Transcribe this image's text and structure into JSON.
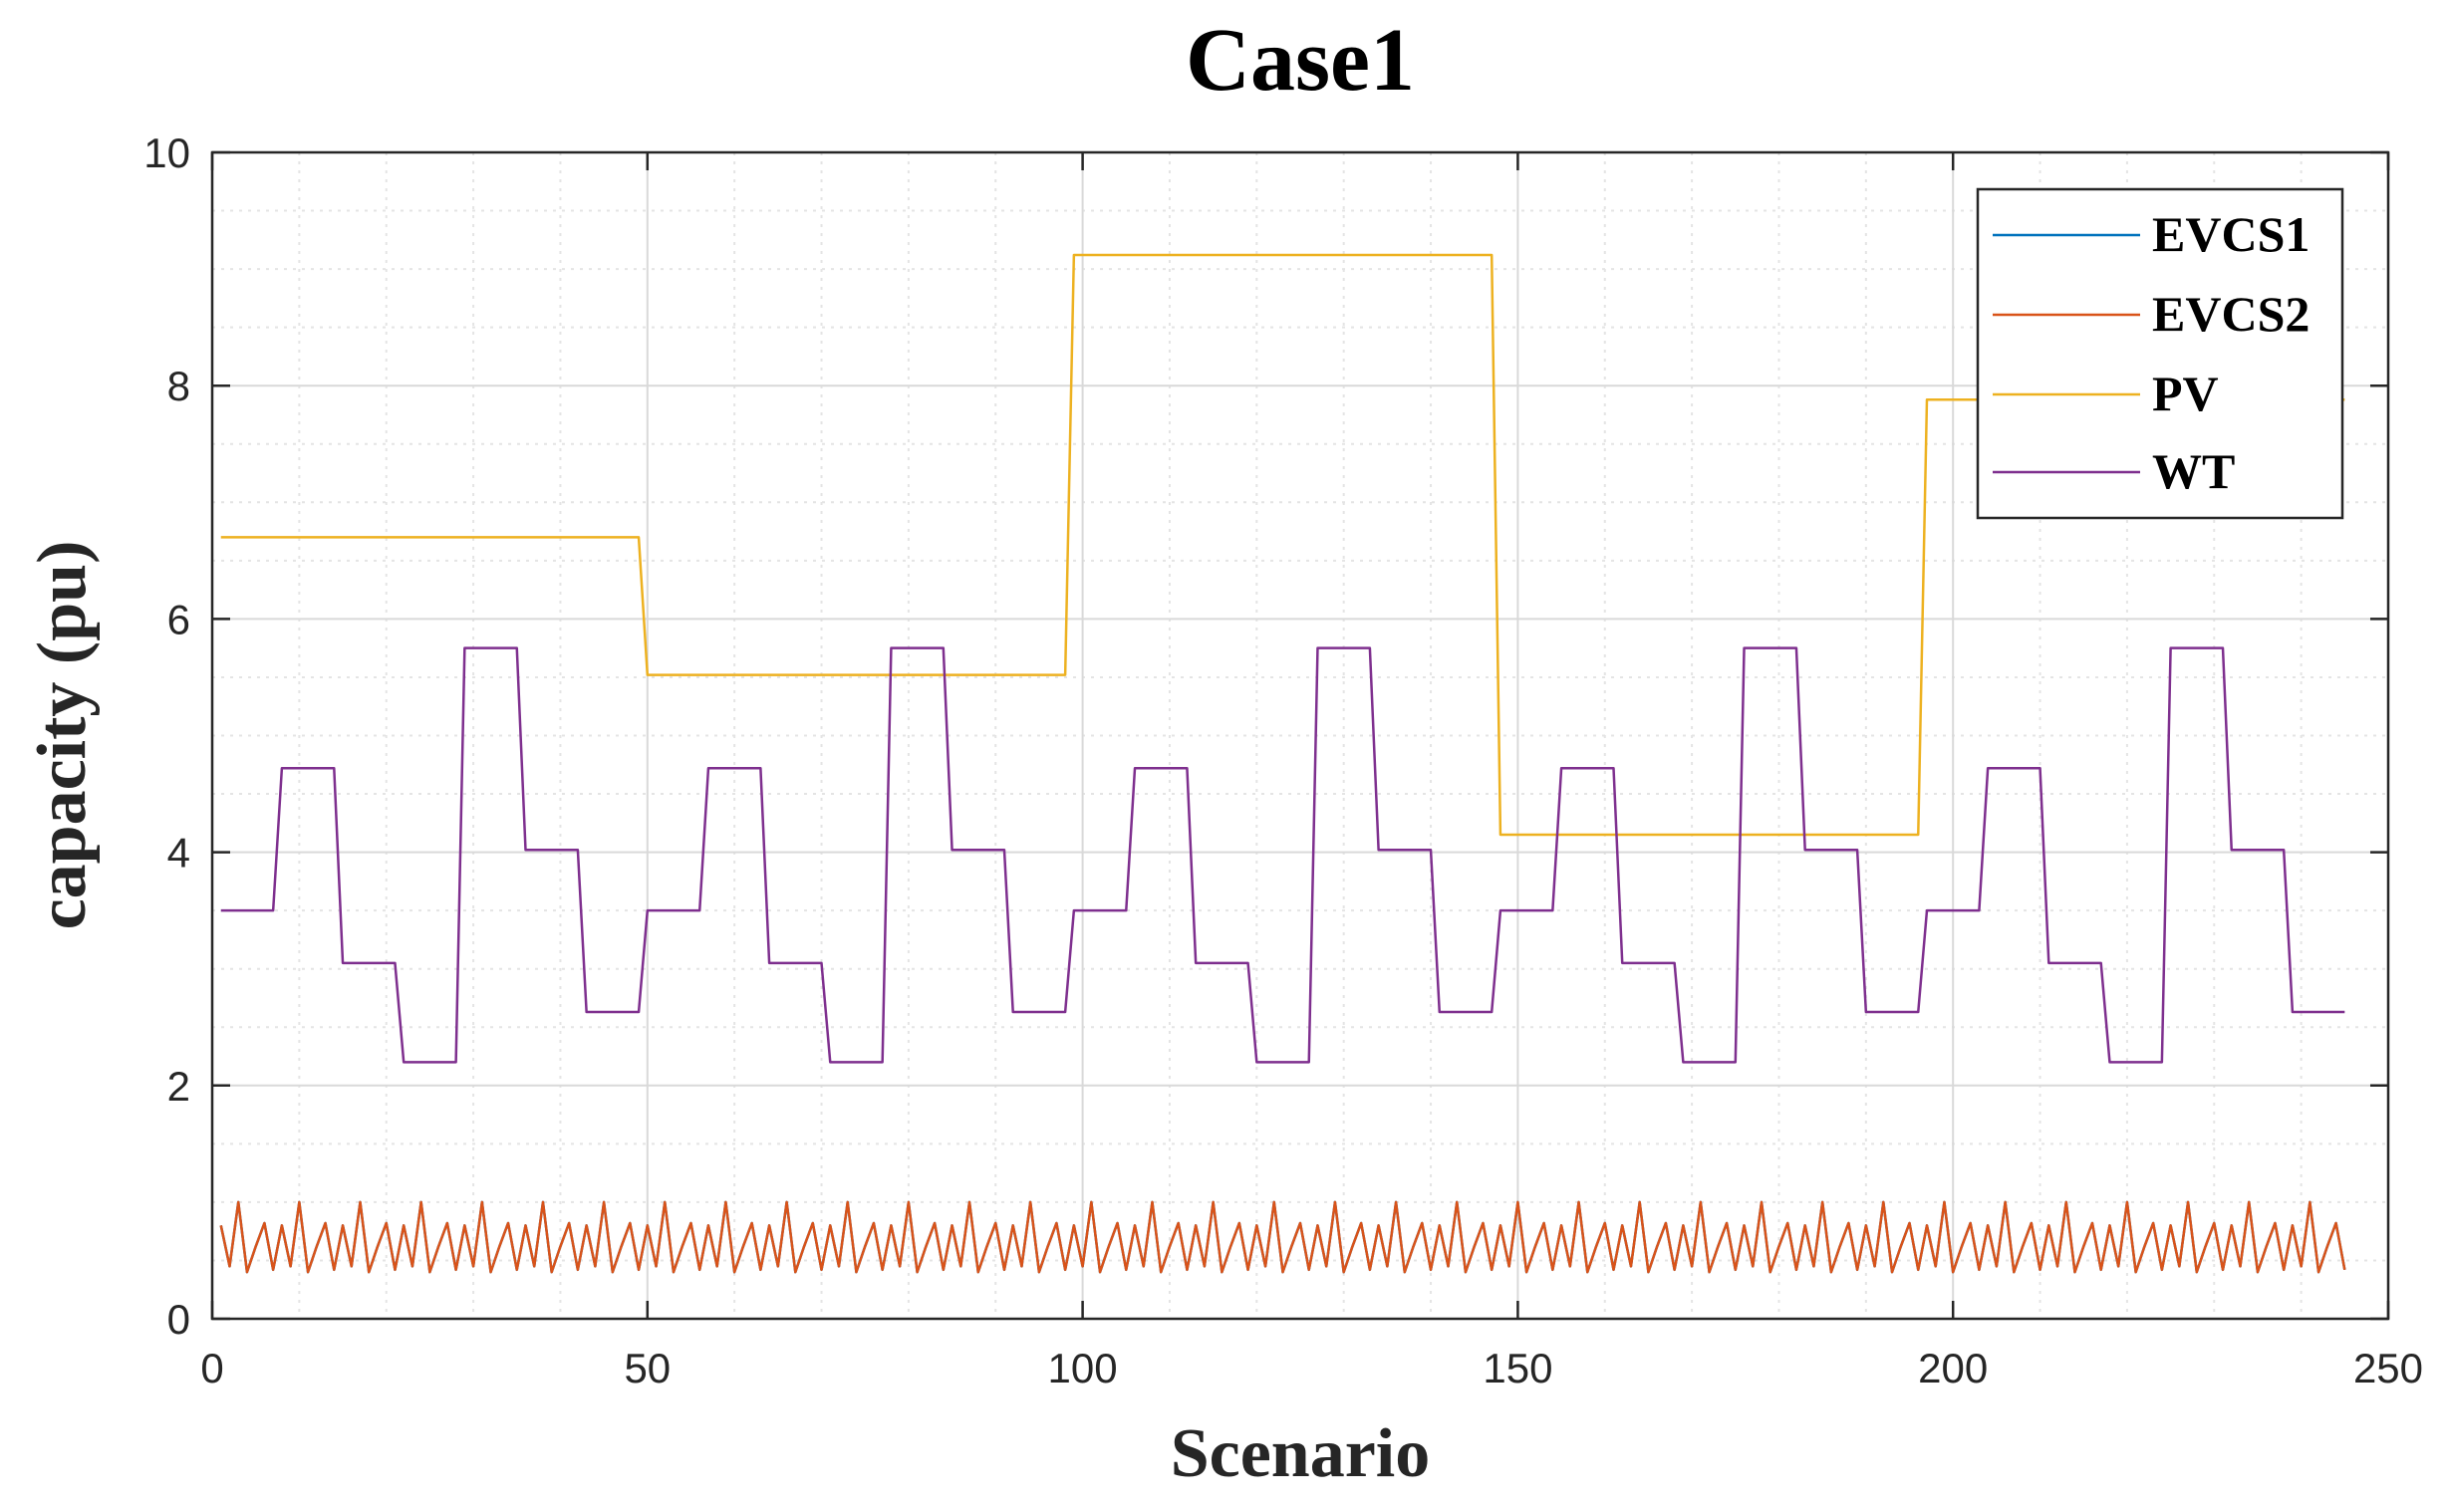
{
  "chart_data": {
    "type": "line",
    "title": "Case1",
    "xlabel": "Scenario",
    "ylabel": "capacity (pu)",
    "xlim": [
      0,
      250
    ],
    "ylim": [
      0,
      10
    ],
    "x_ticks": [
      0,
      50,
      100,
      150,
      200,
      250
    ],
    "y_ticks": [
      0,
      2,
      4,
      6,
      8,
      10
    ],
    "x_tick_labels": [
      "0",
      "50",
      "100",
      "150",
      "200",
      "250"
    ],
    "y_tick_labels": [
      "0",
      "2",
      "4",
      "6",
      "8",
      "10"
    ],
    "grid": true,
    "minor_grid": true,
    "legend_position": "top-right",
    "series": [
      {
        "name": "EVCS1",
        "color": "#0072BD",
        "pattern": "sawtooth",
        "cycle": [
          0.8,
          0.45,
          1.0,
          0.4,
          0.62,
          0.82,
          0.42
        ],
        "n_points": 245
      },
      {
        "name": "EVCS2",
        "color": "#D95319",
        "pattern": "sawtooth",
        "cycle": [
          0.8,
          0.45,
          1.0,
          0.4,
          0.62,
          0.82,
          0.42
        ],
        "n_points": 245
      },
      {
        "name": "PV",
        "color": "#EDB120",
        "pattern": "step",
        "steps": [
          {
            "from": 1,
            "to": 49,
            "value": 6.7
          },
          {
            "from": 50,
            "to": 98,
            "value": 5.52
          },
          {
            "from": 99,
            "to": 147,
            "value": 9.12
          },
          {
            "from": 148,
            "to": 196,
            "value": 4.15
          },
          {
            "from": 197,
            "to": 245,
            "value": 7.88
          }
        ]
      },
      {
        "name": "WT",
        "color": "#7E2F8E",
        "pattern": "repeating-step",
        "period": 49,
        "levels": [
          3.5,
          4.72,
          3.05,
          2.2,
          5.75,
          4.02,
          2.63
        ],
        "n_points": 245
      }
    ]
  }
}
